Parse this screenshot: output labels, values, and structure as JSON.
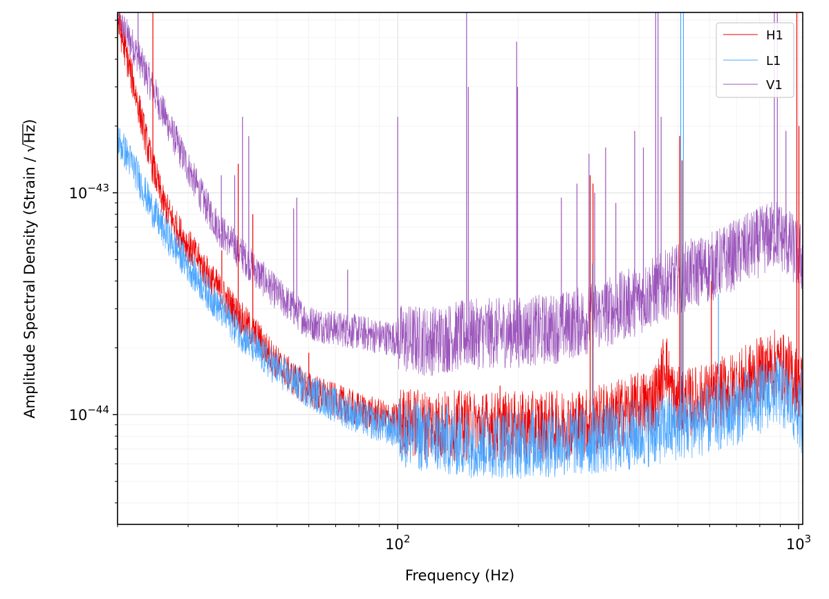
{
  "chart_data": {
    "type": "line",
    "xlabel": "Frequency (Hz)",
    "ylabel_prefix": "Amplitude Spectral Density (Strain / ",
    "ylabel_sqrt": "√",
    "ylabel_radicand": "Hz",
    "ylabel_suffix": ")",
    "xscale": "log",
    "yscale": "log",
    "xlim": [
      20,
      1024
    ],
    "ylim": [
      3.2e-45,
      6.5e-43
    ],
    "grid": true,
    "legend_position": "top-right",
    "x_tick_labels": [
      {
        "value": 100,
        "base": "10",
        "exp": "2"
      },
      {
        "value": 1000,
        "base": "10",
        "exp": "3"
      }
    ],
    "y_tick_labels": [
      {
        "value": 1e-44,
        "base": "10",
        "exp": "−44"
      },
      {
        "value": 1e-43,
        "base": "10",
        "exp": "−43"
      }
    ],
    "series": [
      {
        "name": "H1",
        "color": "#ee0000",
        "base": [
          [
            20,
            6e-43
          ],
          [
            22,
            3e-43
          ],
          [
            24,
            1.5e-43
          ],
          [
            26,
            9e-44
          ],
          [
            28,
            7e-44
          ],
          [
            30,
            5.8e-44
          ],
          [
            33,
            4.5e-44
          ],
          [
            36,
            3.6e-44
          ],
          [
            40,
            2.8e-44
          ],
          [
            45,
            2.2e-44
          ],
          [
            50,
            1.7e-44
          ],
          [
            55,
            1.45e-44
          ],
          [
            60,
            1.3e-44
          ],
          [
            70,
            1.15e-44
          ],
          [
            80,
            1.05e-44
          ],
          [
            90,
            9.8e-45
          ],
          [
            100,
            9.3e-45
          ],
          [
            120,
            9e-45
          ],
          [
            150,
            8.9e-45
          ],
          [
            200,
            8.8e-45
          ],
          [
            250,
            8.9e-45
          ],
          [
            300,
            9.2e-45
          ],
          [
            350,
            1e-44
          ],
          [
            400,
            1.08e-44
          ],
          [
            430,
            1.15e-44
          ],
          [
            450,
            1.3e-44
          ],
          [
            465,
            1.8e-44
          ],
          [
            475,
            1.4e-44
          ],
          [
            490,
            1.15e-44
          ],
          [
            520,
            1.12e-44
          ],
          [
            600,
            1.2e-44
          ],
          [
            700,
            1.35e-44
          ],
          [
            800,
            1.55e-44
          ],
          [
            880,
            1.7e-44
          ],
          [
            950,
            1.55e-44
          ],
          [
            1024,
            1.3e-44
          ]
        ],
        "lines": [
          [
            24.5,
            6.5e-43
          ],
          [
            30.5,
            6.2e-44
          ],
          [
            33.8,
            4.3e-44
          ],
          [
            36.4,
            5.5e-44
          ],
          [
            40.0,
            1.35e-43
          ],
          [
            43.5,
            8e-44
          ],
          [
            60,
            1.9e-44
          ],
          [
            120,
            1.2e-44
          ],
          [
            180,
            1.35e-44
          ],
          [
            302,
            1.2e-43
          ],
          [
            307,
            1.1e-43
          ],
          [
            505,
            1.8e-43
          ],
          [
            512,
            1.4e-43
          ],
          [
            606,
            4e-44
          ],
          [
            990,
            6.5e-43
          ],
          [
            1002,
            2e-43
          ]
        ]
      },
      {
        "name": "L1",
        "color": "#4aa5ff",
        "base": [
          [
            20,
            1.75e-43
          ],
          [
            22,
            1.3e-43
          ],
          [
            24,
            9e-44
          ],
          [
            26,
            6.8e-44
          ],
          [
            28,
            5.6e-44
          ],
          [
            30,
            4.7e-44
          ],
          [
            33,
            3.7e-44
          ],
          [
            36,
            3e-44
          ],
          [
            40,
            2.4e-44
          ],
          [
            45,
            1.9e-44
          ],
          [
            50,
            1.6e-44
          ],
          [
            55,
            1.42e-44
          ],
          [
            60,
            1.28e-44
          ],
          [
            70,
            1.1e-44
          ],
          [
            80,
            9.8e-45
          ],
          [
            90,
            9e-45
          ],
          [
            100,
            8.5e-45
          ],
          [
            120,
            7.8e-45
          ],
          [
            150,
            7.5e-45
          ],
          [
            200,
            7.4e-45
          ],
          [
            250,
            7.5e-45
          ],
          [
            300,
            7.7e-45
          ],
          [
            350,
            7.9e-45
          ],
          [
            400,
            8.2e-45
          ],
          [
            450,
            8.6e-45
          ],
          [
            500,
            8.9e-45
          ],
          [
            600,
            9.5e-45
          ],
          [
            700,
            1.05e-44
          ],
          [
            800,
            1.18e-44
          ],
          [
            880,
            1.3e-44
          ],
          [
            950,
            1.15e-44
          ],
          [
            1024,
            9.5e-45
          ]
        ],
        "lines": [
          [
            306,
            4.8e-44
          ],
          [
            508,
            6.5e-43
          ],
          [
            516,
            6.5e-43
          ],
          [
            631,
            3.5e-44
          ],
          [
            1015,
            1.6e-44
          ]
        ]
      },
      {
        "name": "V1",
        "color": "#9b55bb",
        "base": [
          [
            20,
            6e-43
          ],
          [
            22,
            4.5e-43
          ],
          [
            24,
            3.2e-43
          ],
          [
            26,
            2.3e-43
          ],
          [
            28,
            1.7e-43
          ],
          [
            30,
            1.3e-43
          ],
          [
            33,
            9e-44
          ],
          [
            36,
            6.8e-44
          ],
          [
            40,
            5.5e-44
          ],
          [
            45,
            4.3e-44
          ],
          [
            50,
            3.5e-44
          ],
          [
            55,
            3e-44
          ],
          [
            60,
            2.6e-44
          ],
          [
            70,
            2.45e-44
          ],
          [
            80,
            2.35e-44
          ],
          [
            90,
            2.25e-44
          ],
          [
            100,
            2.2e-44
          ],
          [
            120,
            2.15e-44
          ],
          [
            150,
            2.3e-44
          ],
          [
            200,
            2.35e-44
          ],
          [
            250,
            2.45e-44
          ],
          [
            300,
            2.7e-44
          ],
          [
            350,
            3e-44
          ],
          [
            400,
            3.3e-44
          ],
          [
            450,
            3.7e-44
          ],
          [
            500,
            4.1e-44
          ],
          [
            600,
            4.6e-44
          ],
          [
            700,
            5.3e-44
          ],
          [
            800,
            6e-44
          ],
          [
            880,
            6.6e-44
          ],
          [
            950,
            5.8e-44
          ],
          [
            1024,
            5e-44
          ]
        ],
        "lines": [
          [
            22.5,
            6.5e-43
          ],
          [
            36.3,
            1.2e-43
          ],
          [
            39.2,
            1.2e-43
          ],
          [
            41.0,
            2.2e-43
          ],
          [
            42.5,
            1.8e-43
          ],
          [
            48,
            4e-44
          ],
          [
            55,
            8.5e-44
          ],
          [
            56,
            9.5e-44
          ],
          [
            75,
            4.5e-44
          ],
          [
            100,
            2.2e-43
          ],
          [
            148.5,
            6.5e-43
          ],
          [
            150,
            3e-43
          ],
          [
            198,
            4.8e-43
          ],
          [
            199,
            3e-43
          ],
          [
            256,
            9.5e-44
          ],
          [
            280,
            1.1e-43
          ],
          [
            300,
            1.5e-43
          ],
          [
            310,
            1e-43
          ],
          [
            330,
            1.6e-43
          ],
          [
            350,
            9e-44
          ],
          [
            390,
            1.9e-43
          ],
          [
            410,
            1.6e-43
          ],
          [
            440,
            6.5e-43
          ],
          [
            446,
            6.5e-43
          ],
          [
            454,
            2.2e-43
          ],
          [
            870,
            6.5e-43
          ],
          [
            885,
            6.5e-43
          ],
          [
            930,
            1.9e-43
          ]
        ]
      }
    ]
  }
}
